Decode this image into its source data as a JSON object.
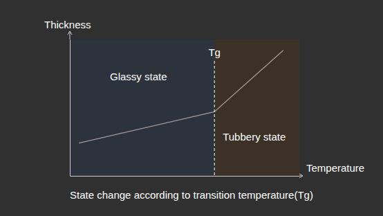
{
  "chart_data": {
    "type": "line",
    "title": "State change according to transition temperature(Tg)",
    "x_label": "Temperature",
    "y_label": "Thickness",
    "x": [
      4,
      63,
      93
    ],
    "values": [
      24,
      47,
      92
    ],
    "color": "#a69a9a",
    "xlim": [
      0,
      100
    ],
    "ylim": [
      0,
      100
    ],
    "xticks": [],
    "yticks": [],
    "tick_labels": false,
    "grid": false,
    "line_style": "solid",
    "annotations": [
      {
        "text": "Tg",
        "x": 63,
        "line_style": "dashed",
        "color": "#ffffff"
      }
    ],
    "regions": [
      {
        "label": "Glassy state",
        "x": [
          0,
          63
        ],
        "color": "#2c333c"
      },
      {
        "label": "Tubbery state",
        "x": [
          63,
          100
        ],
        "color": "#3c3126"
      }
    ]
  }
}
